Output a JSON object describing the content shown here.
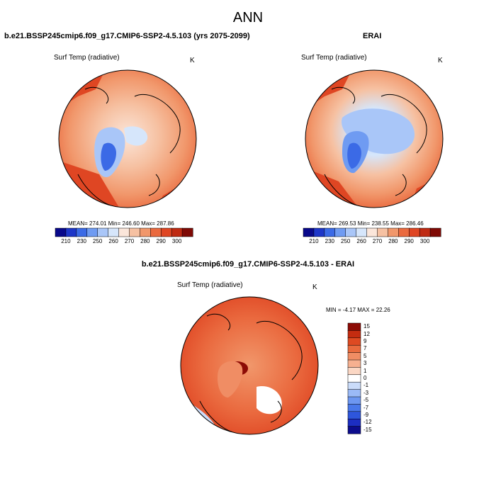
{
  "main_title": "ANN",
  "colors": {
    "abs_scale": [
      "#08088a",
      "#1d36c8",
      "#3b6ae6",
      "#6f9bf2",
      "#a9c6f8",
      "#d6e6fb",
      "#fbe6da",
      "#f6c1a2",
      "#f1976b",
      "#ea6a3f",
      "#df4623",
      "#bf2a12",
      "#7f0a05"
    ],
    "diff_scale": [
      "#0c0c8c",
      "#1c2ec2",
      "#2e56dc",
      "#4978ea",
      "#6d97f1",
      "#9bbaf7",
      "#cadcfa",
      "#ffffff",
      "#fbd7c4",
      "#f6b090",
      "#f08d64",
      "#e96b3e",
      "#de4a22",
      "#c42c10",
      "#8c0b05"
    ],
    "coast": "#000000"
  },
  "panels": {
    "left": {
      "title": "b.e21.BSSP245cmip6.f09_g17.CMIP6-SSP2-4.5.103 (yrs 2075-2099)",
      "var_label": "Surf Temp (radiative)",
      "units": "K",
      "stats": "MEAN= 274.01  Min= 246.60  Max= 287.86"
    },
    "right": {
      "title": "ERAI",
      "var_label": "Surf Temp (radiative)",
      "units": "K",
      "stats": "MEAN= 269.53  Min= 238.55  Max= 286.46"
    },
    "bottom": {
      "title": "b.e21.BSSP245cmip6.f09_g17.CMIP6-SSP2-4.5.103 - ERAI",
      "var_label": "Surf Temp (radiative)",
      "units": "K",
      "stats": "MIN =  -4.17 MAX =  22.26"
    }
  },
  "chart_data": [
    {
      "type": "heatmap",
      "title": "b.e21.BSSP245cmip6.f09_g17.CMIP6-SSP2-4.5.103 (yrs 2075-2099)",
      "variable": "Surf Temp (radiative)",
      "units": "K",
      "projection": "north polar stereographic",
      "colorbar_ticks": [
        "210",
        "230",
        "250",
        "260",
        "270",
        "280",
        "290",
        "300"
      ],
      "mean": 274.01,
      "min": 246.6,
      "max": 287.86
    },
    {
      "type": "heatmap",
      "title": "ERAI",
      "variable": "Surf Temp (radiative)",
      "units": "K",
      "projection": "north polar stereographic",
      "colorbar_ticks": [
        "210",
        "230",
        "250",
        "260",
        "270",
        "280",
        "290",
        "300"
      ],
      "mean": 269.53,
      "min": 238.55,
      "max": 286.46
    },
    {
      "type": "heatmap",
      "title": "b.e21.BSSP245cmip6.f09_g17.CMIP6-SSP2-4.5.103 - ERAI",
      "variable": "Surf Temp (radiative)",
      "units": "K",
      "projection": "north polar stereographic",
      "colorbar_ticks": [
        "15",
        "12",
        "9",
        "7",
        "5",
        "3",
        "1",
        "0",
        "-1",
        "-3",
        "-5",
        "-7",
        "-9",
        "-12",
        "-15"
      ],
      "min": -4.17,
      "max": 22.26
    }
  ]
}
